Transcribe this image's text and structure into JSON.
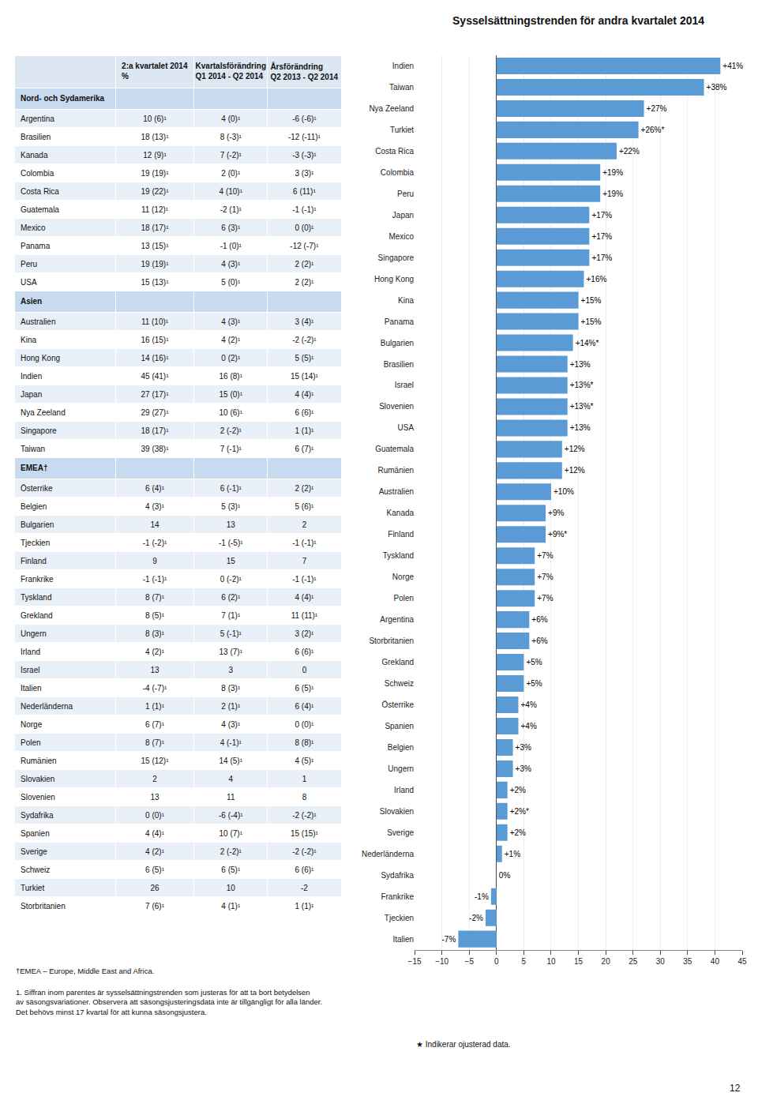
{
  "chart_data": [
    {
      "type": "table",
      "columns": [
        "2:a kvartalet 2014\n%",
        "Kvartalsförändring\nQ1 2014 - Q2 2014",
        "Årsförändring\nQ2 2013 - Q2 2014"
      ],
      "sections": [
        {
          "name": "Nord- och Sydamerika",
          "rows": [
            [
              "Argentina",
              "10 (6)¹",
              "4 (0)¹",
              "-6 (-6)¹"
            ],
            [
              "Brasilien",
              "18 (13)¹",
              "8 (-3)¹",
              "-12 (-11)¹"
            ],
            [
              "Kanada",
              "12 (9)¹",
              "7 (-2)¹",
              "-3 (-3)¹"
            ],
            [
              "Colombia",
              "19 (19)¹",
              "2 (0)¹",
              "3 (3)¹"
            ],
            [
              "Costa Rica",
              "19 (22)¹",
              "4 (10)¹",
              "6 (11)¹"
            ],
            [
              "Guatemala",
              "11 (12)¹",
              "-2 (1)¹",
              "-1 (-1)¹"
            ],
            [
              "Mexico",
              "18 (17)¹",
              "6 (3)¹",
              "0 (0)¹"
            ],
            [
              "Panama",
              "13 (15)¹",
              "-1 (0)¹",
              "-12 (-7)¹"
            ],
            [
              "Peru",
              "19 (19)¹",
              "4 (3)¹",
              "2 (2)¹"
            ],
            [
              "USA",
              "15 (13)¹",
              "5 (0)¹",
              "2 (2)¹"
            ]
          ]
        },
        {
          "name": "Asien",
          "rows": [
            [
              "Australien",
              "11 (10)¹",
              "4 (3)¹",
              "3 (4)¹"
            ],
            [
              "Kina",
              "16 (15)¹",
              "4 (2)¹",
              "-2 (-2)¹"
            ],
            [
              "Hong Kong",
              "14 (16)¹",
              "0 (2)¹",
              "5 (5)¹"
            ],
            [
              "Indien",
              "45 (41)¹",
              "16 (8)¹",
              "15 (14)¹"
            ],
            [
              "Japan",
              "27 (17)¹",
              "15 (0)¹",
              "4 (4)¹"
            ],
            [
              "Nya Zeeland",
              "29 (27)¹",
              "10 (6)¹",
              "6 (6)¹"
            ],
            [
              "Singapore",
              "18 (17)¹",
              "2 (-2)¹",
              "1 (1)¹"
            ],
            [
              "Taiwan",
              "39 (38)¹",
              "7 (-1)¹",
              "6 (7)¹"
            ]
          ]
        },
        {
          "name": "EMEA†",
          "rows": [
            [
              "Österrike",
              "6 (4)¹",
              "6 (-1)¹",
              "2 (2)¹"
            ],
            [
              "Belgien",
              "4 (3)¹",
              "5 (3)¹",
              "5 (6)¹"
            ],
            [
              "Bulgarien",
              "14",
              "13",
              "2"
            ],
            [
              "Tjeckien",
              "-1 (-2)¹",
              "-1 (-5)¹",
              "-1 (-1)¹"
            ],
            [
              "Finland",
              "9",
              "15",
              "7"
            ],
            [
              "Frankrike",
              "-1 (-1)¹",
              "0 (-2)¹",
              "-1 (-1)¹"
            ],
            [
              "Tyskland",
              "8 (7)¹",
              "6 (2)¹",
              "4 (4)¹"
            ],
            [
              "Grekland",
              "8 (5)¹",
              "7 (1)¹",
              "11 (11)¹"
            ],
            [
              "Ungern",
              "8 (3)¹",
              "5 (-1)¹",
              "3 (2)¹"
            ],
            [
              "Irland",
              "4 (2)¹",
              "13 (7)¹",
              "6 (6)¹"
            ],
            [
              "Israel",
              "13",
              "3",
              "0"
            ],
            [
              "Italien",
              "-4 (-7)¹",
              "8 (3)¹",
              "6 (5)¹"
            ],
            [
              "Nederländerna",
              "1 (1)¹",
              "2 (1)¹",
              "6 (4)¹"
            ],
            [
              "Norge",
              "6 (7)¹",
              "4 (3)¹",
              "0 (0)¹"
            ],
            [
              "Polen",
              "8 (7)¹",
              "4 (-1)¹",
              "8 (8)¹"
            ],
            [
              "Rumänien",
              "15 (12)¹",
              "14 (5)¹",
              "4 (5)¹"
            ],
            [
              "Slovakien",
              "2",
              "4",
              "1"
            ],
            [
              "Slovenien",
              "13",
              "11",
              "8"
            ],
            [
              "Sydafrika",
              "0 (0)¹",
              "-6 (-4)¹",
              "-2 (-2)¹"
            ],
            [
              "Spanien",
              "4 (4)¹",
              "10 (7)¹",
              "15 (15)¹"
            ],
            [
              "Sverige",
              "4 (2)¹",
              "2 (-2)¹",
              "-2 (-2)¹"
            ],
            [
              "Schweiz",
              "6 (5)¹",
              "6 (5)¹",
              "6 (6)¹"
            ],
            [
              "Turkiet",
              "26",
              "10",
              "-2"
            ],
            [
              "Storbritanien",
              "7 (6)¹",
              "4 (1)¹",
              "1 (1)¹"
            ]
          ]
        }
      ],
      "annotations": [
        "†EMEA – Europe, Middle East and Africa.",
        "1. Siffran inom parentes är sysselsättningstrenden som justeras för att ta bort betydelsen\nav säsongsvariationer. Observera att säsongsjusteringsdata inte är tillgängligt för alla länder.\nDet behövs minst 17 kvartal för att kunna säsongsjustera."
      ]
    },
    {
      "type": "bar",
      "title": "Sysselsättningstrenden för andra kvartalet 2014",
      "orientation": "horizontal",
      "categories": [
        "Indien",
        "Taiwan",
        "Nya Zeeland",
        "Turkiet",
        "Costa Rica",
        "Colombia",
        "Peru",
        "Japan",
        "Mexico",
        "Singapore",
        "Hong Kong",
        "Kina",
        "Panama",
        "Bulgarien",
        "Brasilien",
        "Israel",
        "Slovenien",
        "USA",
        "Guatemala",
        "Rumänien",
        "Australien",
        "Kanada",
        "Finland",
        "Tyskland",
        "Norge",
        "Polen",
        "Argentina",
        "Storbritanien",
        "Grekland",
        "Schweiz",
        "Österrike",
        "Spanien",
        "Belgien",
        "Ungern",
        "Irland",
        "Slovakien",
        "Sverige",
        "Nederländerna",
        "Sydafrika",
        "Frankrike",
        "Tjeckien",
        "Italien"
      ],
      "values": [
        41,
        38,
        27,
        26,
        22,
        19,
        19,
        17,
        17,
        17,
        16,
        15,
        15,
        14,
        13,
        13,
        13,
        13,
        12,
        12,
        10,
        9,
        9,
        7,
        7,
        7,
        6,
        6,
        5,
        5,
        4,
        4,
        3,
        3,
        2,
        2,
        2,
        1,
        0,
        -1,
        -2,
        -7
      ],
      "value_labels": [
        "+41%",
        "+38%",
        "+27%",
        "+26%*",
        "+22%",
        "+19%",
        "+19%",
        "+17%",
        "+17%",
        "+17%",
        "+16%",
        "+15%",
        "+15%",
        "+14%*",
        "+13%",
        "+13%*",
        "+13%*",
        "+13%",
        "+12%",
        "+12%",
        "+10%",
        "+9%",
        "+9%*",
        "+7%",
        "+7%",
        "+7%",
        "+6%",
        "+6%",
        "+5%",
        "+5%",
        "+4%",
        "+4%",
        "+3%",
        "+3%",
        "+2%",
        "+2%*",
        "+2%",
        "+1%",
        "0%",
        "-1%",
        "-2%",
        "-7%"
      ],
      "data_labels": true,
      "color": "#5b9bd5",
      "xlim": [
        -15,
        45
      ],
      "xticks": [
        -15,
        -10,
        -5,
        0,
        5,
        10,
        15,
        20,
        25,
        30,
        35,
        40,
        45
      ],
      "grid": true,
      "annotations": [
        "★ Indikerar ojusterad data.",
        "12"
      ]
    }
  ]
}
